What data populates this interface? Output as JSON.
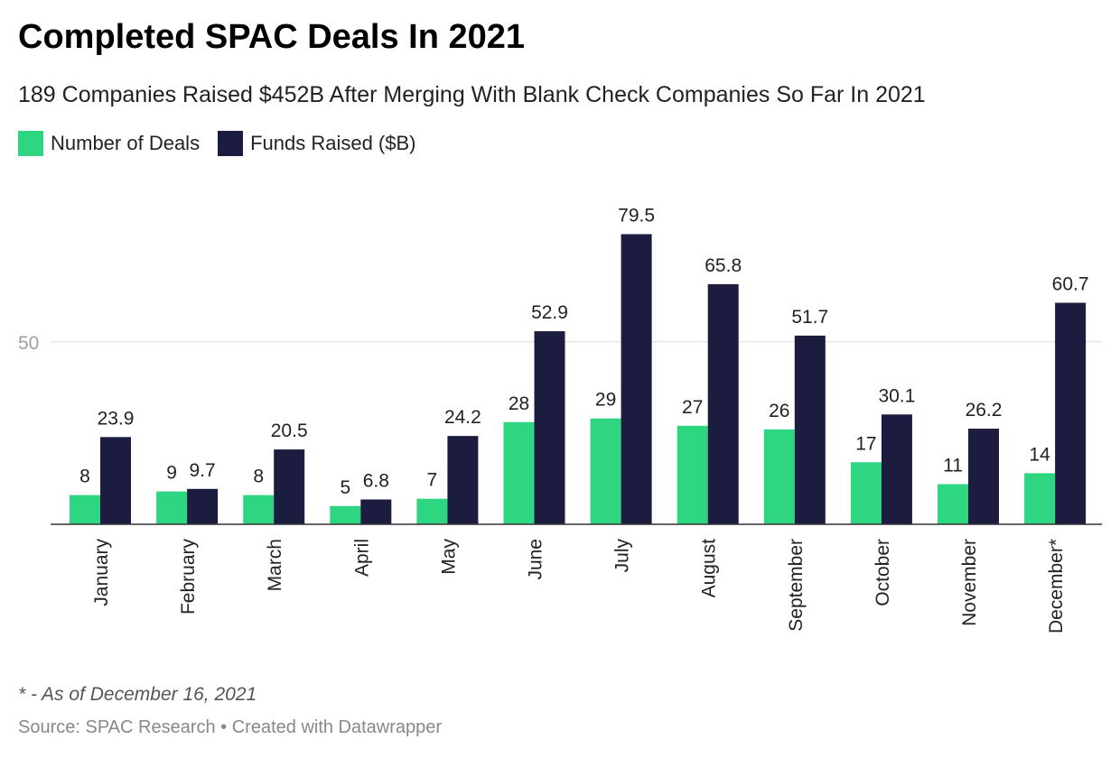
{
  "header": {
    "title": "Completed SPAC Deals In 2021",
    "subtitle": "189 Companies Raised $452B After Merging With Blank Check Companies So Far In 2021"
  },
  "legend": {
    "items": [
      {
        "label": "Number of Deals",
        "color": "#2ed682"
      },
      {
        "label": "Funds Raised ($B)",
        "color": "#1b1c3f"
      }
    ]
  },
  "footer": {
    "note": "* - As of December 16, 2021",
    "source": "Source: SPAC Research • Created with Datawrapper"
  },
  "chart_data": {
    "type": "bar",
    "title": "Completed SPAC Deals In 2021",
    "subtitle": "189 Companies Raised $452B After Merging With Blank Check Companies So Far In 2021",
    "categories": [
      "January",
      "February",
      "March",
      "April",
      "May",
      "June",
      "July",
      "August",
      "September",
      "October",
      "November",
      "December*"
    ],
    "series": [
      {
        "name": "Number of Deals",
        "color": "#2ed682",
        "values": [
          8,
          9,
          8,
          5,
          7,
          28,
          29,
          27,
          26,
          17,
          11,
          14
        ]
      },
      {
        "name": "Funds Raised ($B)",
        "color": "#1b1c3f",
        "values": [
          23.9,
          9.7,
          20.5,
          6.8,
          24.2,
          52.9,
          79.5,
          65.8,
          51.7,
          30.1,
          26.2,
          60.7
        ]
      }
    ],
    "y_ticks": [
      50
    ],
    "ylim": [
      0,
      80
    ],
    "grid": true,
    "legend_position": "top-left",
    "xlabel": "",
    "ylabel": ""
  }
}
